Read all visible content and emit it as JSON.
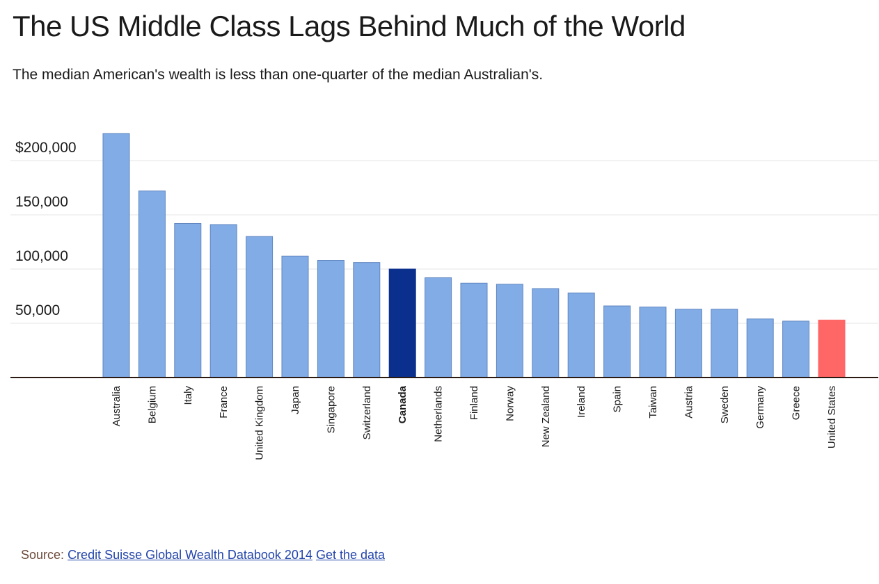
{
  "header": {
    "title": "The US Middle Class Lags Behind Much of the World",
    "subtitle": "The median American's wealth is less than one-quarter of the median Australian's."
  },
  "chart_data": {
    "type": "bar",
    "title": "The US Middle Class Lags Behind Much of the World",
    "subtitle": "The median American's wealth is less than one-quarter of the median Australian's.",
    "xlabel": "",
    "ylabel": "",
    "ylim": [
      0,
      225000
    ],
    "yticks": [
      50000,
      100000,
      150000,
      200000
    ],
    "ytick_labels": [
      "50,000",
      "100,000",
      "150,000",
      "$200,000"
    ],
    "grid": true,
    "categories": [
      "Australia",
      "Belgium",
      "Italy",
      "France",
      "United Kingdom",
      "Japan",
      "Singapore",
      "Switzerland",
      "Canada",
      "Netherlands",
      "Finland",
      "Norway",
      "New Zealand",
      "Ireland",
      "Spain",
      "Taiwan",
      "Austria",
      "Sweden",
      "Germany",
      "Greece",
      "United States"
    ],
    "values": [
      225000,
      172000,
      142000,
      141000,
      130000,
      112000,
      108000,
      106000,
      100000,
      92000,
      87000,
      86000,
      82000,
      78000,
      66000,
      65000,
      63000,
      63000,
      54000,
      52000,
      53000
    ],
    "highlight": {
      "Canada": "#0a2f8c",
      "United States": "#ff6666"
    },
    "bold_categories": [
      "Canada"
    ],
    "colors": {
      "default": "#82ace6",
      "bar_stroke": "#5f86c0",
      "axis": "#2a1a12",
      "grid": "#e4e4e4"
    }
  },
  "footer": {
    "source_label": "Source:",
    "source_link": "Credit Suisse Global Wealth Databook 2014",
    "data_link": "Get the data"
  }
}
